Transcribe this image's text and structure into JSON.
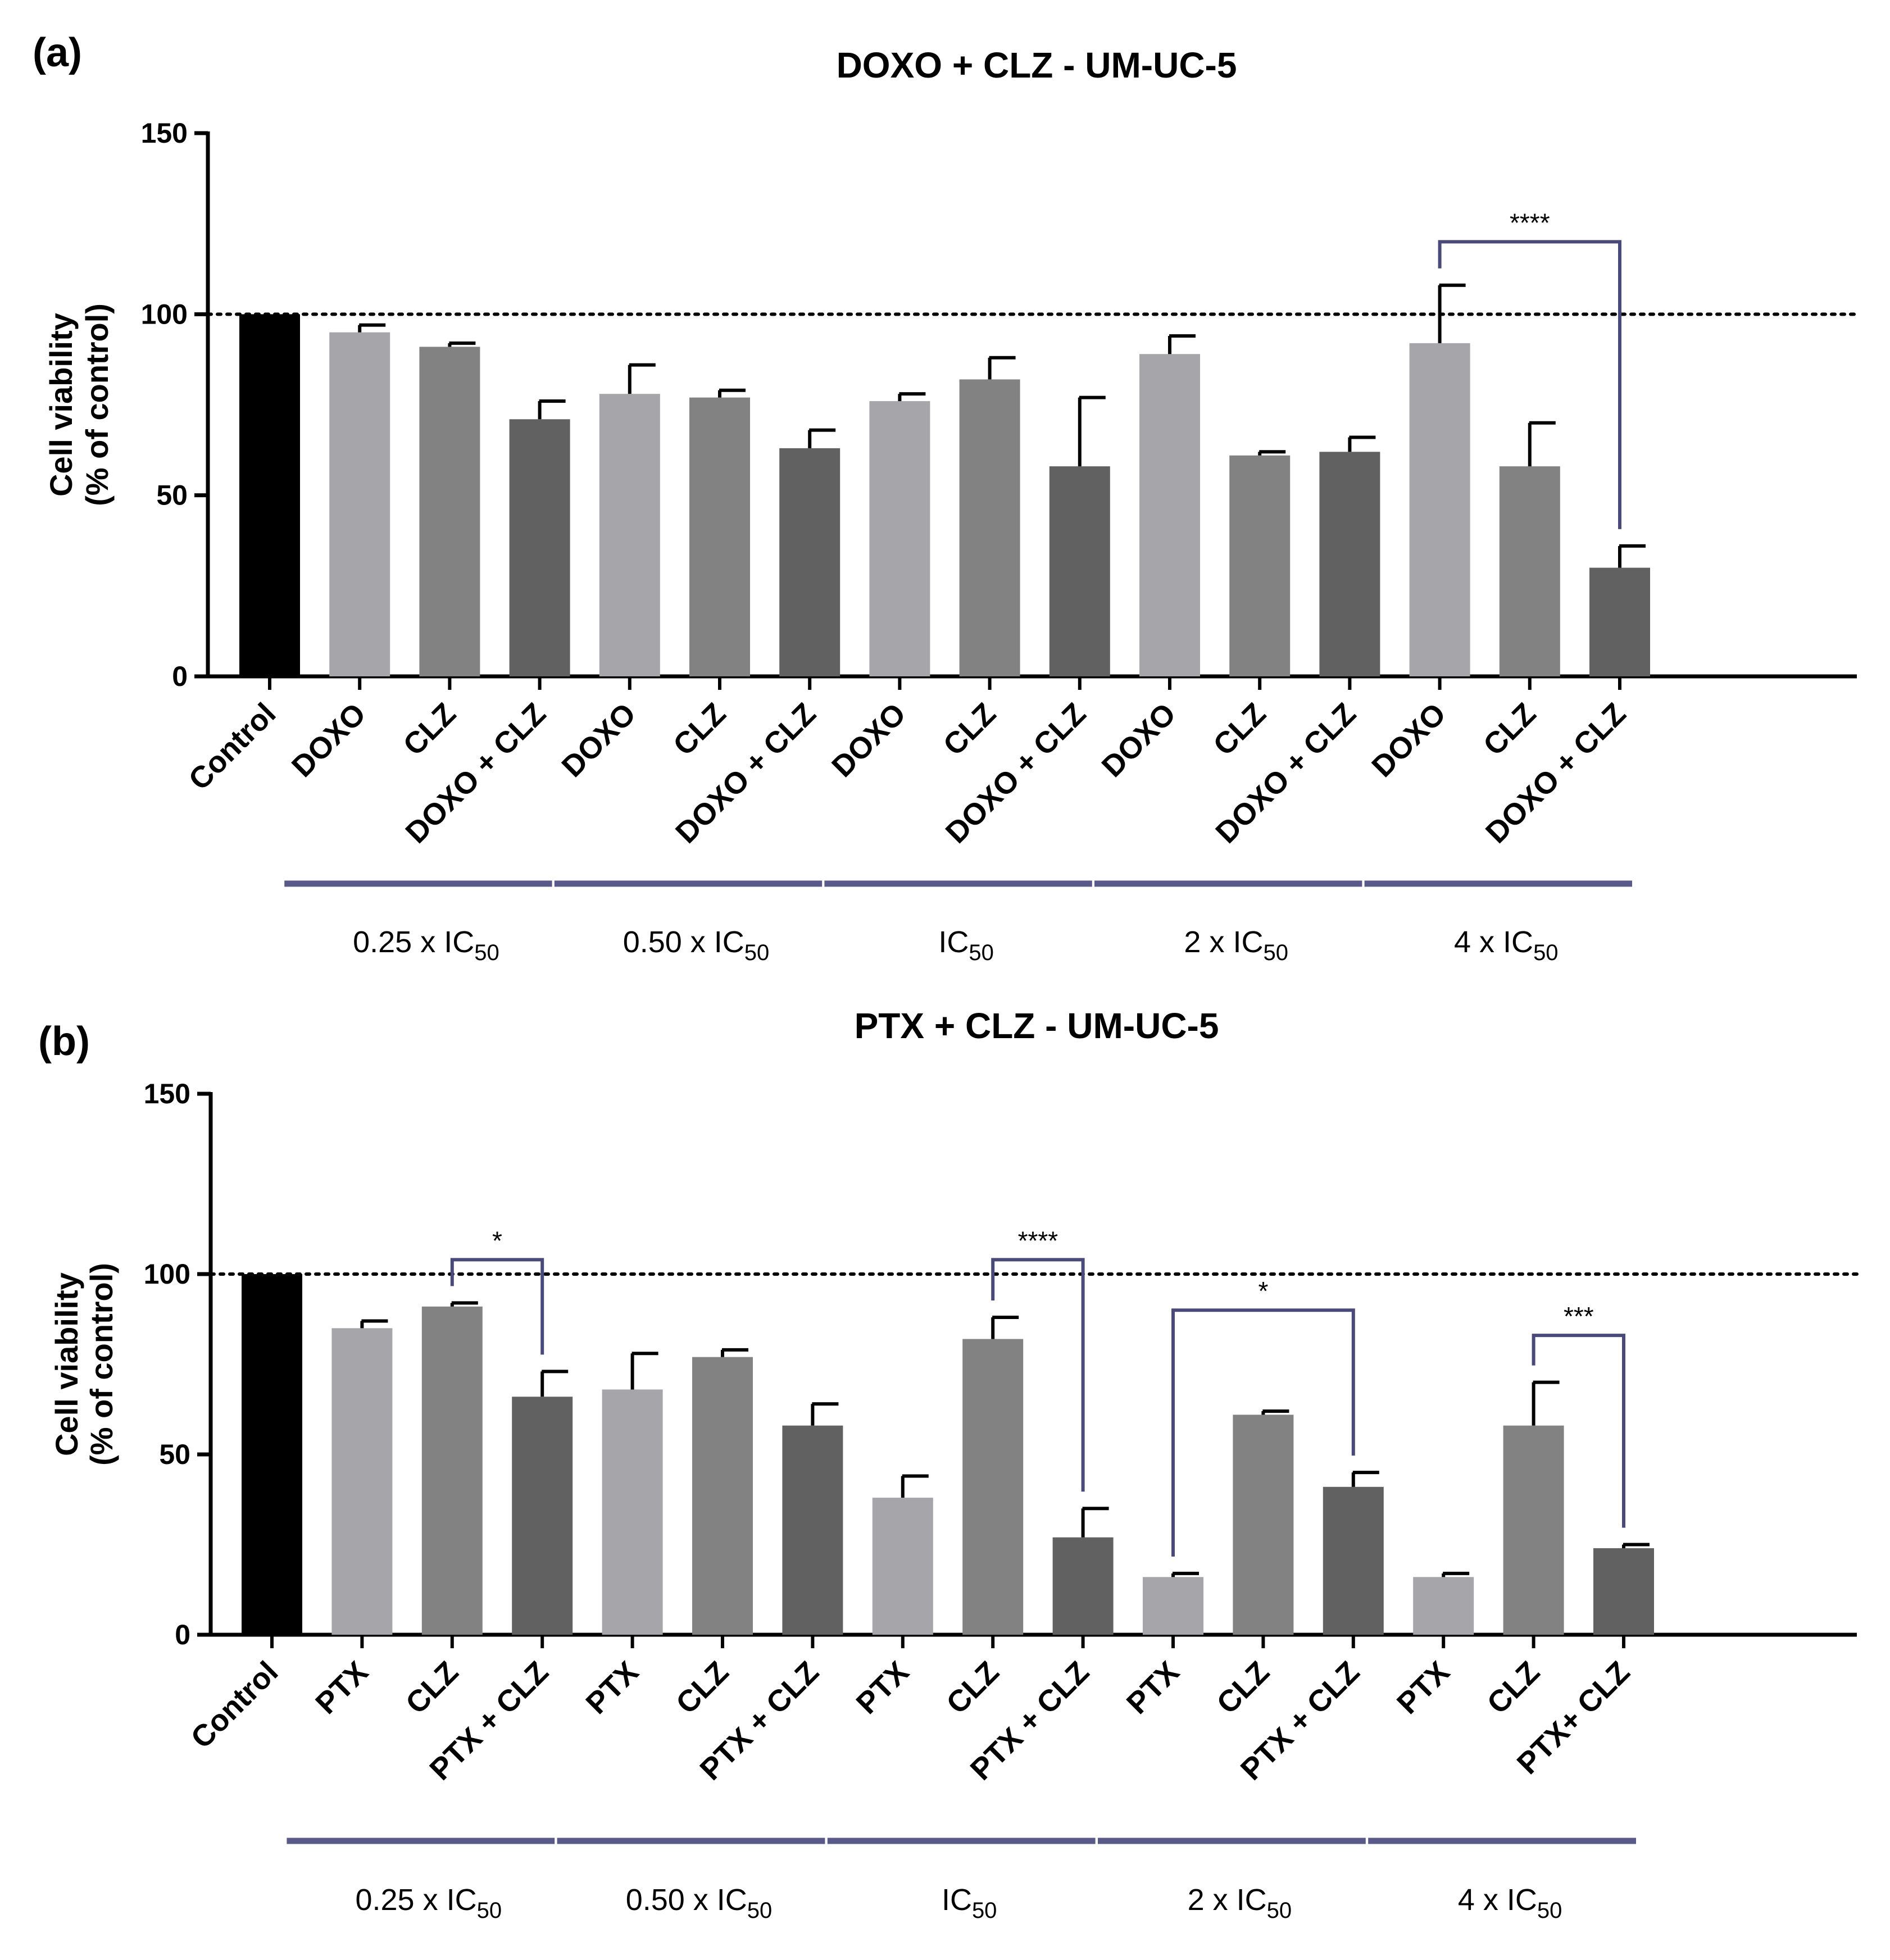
{
  "colors": {
    "control": "#000000",
    "drug": "#a5a5aa",
    "clz": "#828282",
    "combo": "#616161",
    "bracket": "#4a4a7a",
    "group_bar": "#5a5a8a",
    "axis": "#000000"
  },
  "group_subscript": "50",
  "chart_data": [
    {
      "panel": "(a)",
      "type": "bar",
      "title": "DOXO + CLZ - UM-UC-5",
      "ylabel_line1": "Cell viability",
      "ylabel_line2": "(% of control)",
      "ylim": [
        0,
        150
      ],
      "yticks": [
        "0",
        "50",
        "100",
        "150"
      ],
      "reference_line": 100,
      "categories": [
        "Control",
        "DOXO",
        "CLZ",
        "DOXO + CLZ",
        "DOXO",
        "CLZ",
        "DOXO + CLZ",
        "DOXO",
        "CLZ",
        "DOXO + CLZ",
        "DOXO",
        "CLZ",
        "DOXO + CLZ",
        "DOXO",
        "CLZ",
        "DOXO + CLZ"
      ],
      "kinds": [
        "control",
        "drug",
        "clz",
        "combo",
        "drug",
        "clz",
        "combo",
        "drug",
        "clz",
        "combo",
        "drug",
        "clz",
        "combo",
        "drug",
        "clz",
        "combo"
      ],
      "values": [
        100,
        95,
        91,
        71,
        78,
        77,
        63,
        76,
        82,
        58,
        89,
        61,
        62,
        92,
        58,
        30
      ],
      "errors": [
        0,
        2,
        1,
        5,
        8,
        2,
        5,
        2,
        6,
        19,
        5,
        1,
        4,
        16,
        12,
        6
      ],
      "groups": [
        {
          "label": "0.25 x IC",
          "start": 1,
          "end": 3
        },
        {
          "label": "0.50 x IC",
          "start": 4,
          "end": 6
        },
        {
          "label": "IC",
          "start": 7,
          "end": 9
        },
        {
          "label": "2 x IC",
          "start": 10,
          "end": 12
        },
        {
          "label": "4 x IC",
          "start": 13,
          "end": 15
        }
      ],
      "significance": [
        {
          "from": 13,
          "to": 15,
          "label": "****",
          "level": 120
        }
      ]
    },
    {
      "panel": "(b)",
      "type": "bar",
      "title": "PTX + CLZ - UM-UC-5",
      "ylabel_line1": "Cell viability",
      "ylabel_line2": "(% of control)",
      "ylim": [
        0,
        150
      ],
      "yticks": [
        "0",
        "50",
        "100",
        "150"
      ],
      "reference_line": 100,
      "categories": [
        "Control",
        "PTX",
        "CLZ",
        "PTX + CLZ",
        "PTX",
        "CLZ",
        "PTX + CLZ",
        "PTX",
        "CLZ",
        "PTX + CLZ",
        "PTX",
        "CLZ",
        "PTX + CLZ",
        "PTX",
        "CLZ",
        "PTX+ CLZ"
      ],
      "kinds": [
        "control",
        "drug",
        "clz",
        "combo",
        "drug",
        "clz",
        "combo",
        "drug",
        "clz",
        "combo",
        "drug",
        "clz",
        "combo",
        "drug",
        "clz",
        "combo"
      ],
      "values": [
        100,
        85,
        91,
        66,
        68,
        77,
        58,
        38,
        82,
        27,
        16,
        61,
        41,
        16,
        58,
        24
      ],
      "errors": [
        0,
        2,
        1,
        7,
        10,
        2,
        6,
        6,
        6,
        8,
        1,
        1,
        4,
        1,
        12,
        1
      ],
      "groups": [
        {
          "label": "0.25 x IC",
          "start": 1,
          "end": 3
        },
        {
          "label": "0.50 x IC",
          "start": 4,
          "end": 6
        },
        {
          "label": "IC",
          "start": 7,
          "end": 9
        },
        {
          "label": "2 x IC",
          "start": 10,
          "end": 12
        },
        {
          "label": "4 x IC",
          "start": 13,
          "end": 15
        }
      ],
      "significance": [
        {
          "from": 2,
          "to": 3,
          "label": "*",
          "level": 104
        },
        {
          "from": 8,
          "to": 9,
          "label": "****",
          "level": 104
        },
        {
          "from": 10,
          "to": 12,
          "label": "*",
          "level": 90
        },
        {
          "from": 14,
          "to": 15,
          "label": "***",
          "level": 83
        }
      ]
    }
  ]
}
